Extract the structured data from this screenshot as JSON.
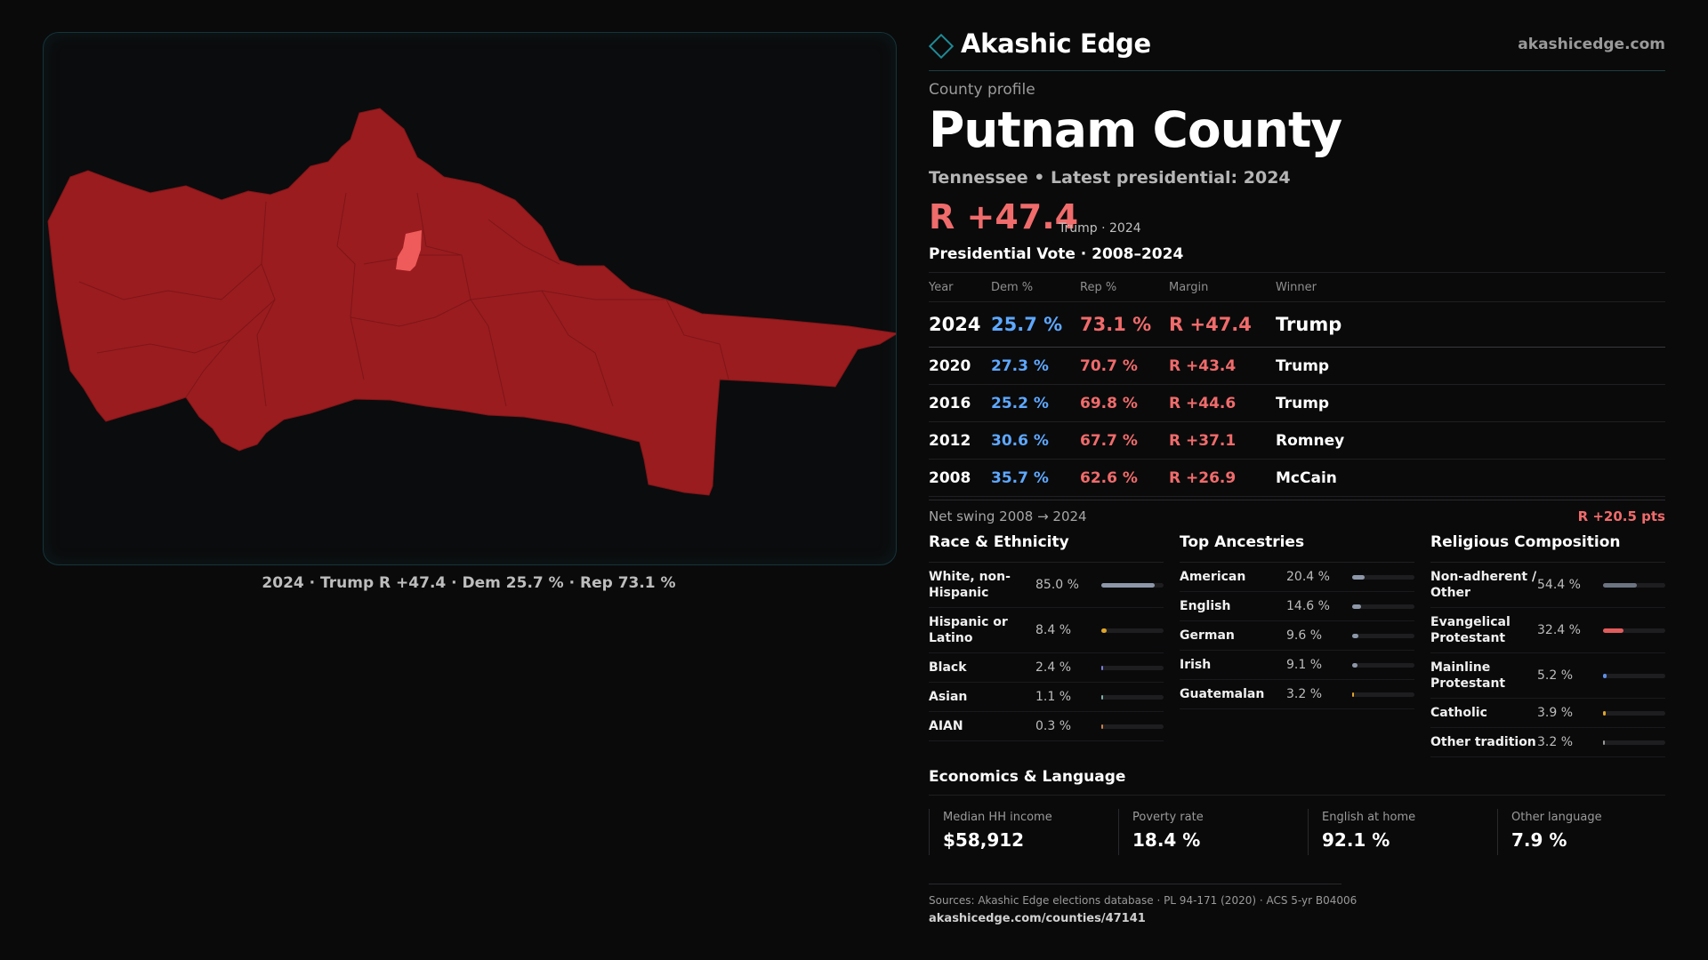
{
  "brand": {
    "name": "Akashic Edge",
    "url": "akashicedge.com",
    "icon": "diamond-outline-icon",
    "accent": "#1f8a95"
  },
  "profile": {
    "eyebrow": "County profile",
    "county": "Putnam County",
    "subtitle": "Tennessee • Latest presidential: 2024",
    "headline_margin": "R +47.4",
    "headline_note": "Trump · 2024"
  },
  "map": {
    "caption": "2024 · Trump R +47.4 · Dem 25.7 % · Rep 73.1 %",
    "fill_color": "#9a1c1f",
    "highlight_color": "#ef5b5b"
  },
  "vote": {
    "title": "Presidential Vote · 2008–2024",
    "headers": [
      "Year",
      "Dem %",
      "Rep %",
      "Margin",
      "Winner"
    ],
    "rows": [
      {
        "year": "2024",
        "dem": "25.7 %",
        "rep": "73.1 %",
        "margin": "R +47.4",
        "winner": "Trump"
      },
      {
        "year": "2020",
        "dem": "27.3 %",
        "rep": "70.7 %",
        "margin": "R +43.4",
        "winner": "Trump"
      },
      {
        "year": "2016",
        "dem": "25.2 %",
        "rep": "69.8 %",
        "margin": "R +44.6",
        "winner": "Trump"
      },
      {
        "year": "2012",
        "dem": "30.6 %",
        "rep": "67.7 %",
        "margin": "R +37.1",
        "winner": "Romney"
      },
      {
        "year": "2008",
        "dem": "35.7 %",
        "rep": "62.6 %",
        "margin": "R +26.9",
        "winner": "McCain"
      }
    ],
    "swing_label": "Net swing 2008 → 2024",
    "swing_value": "R +20.5 pts"
  },
  "race": {
    "title": "Race & Ethnicity",
    "items": [
      {
        "label": "White, non-Hispanic",
        "value": "85.0 %",
        "pct": 85.0,
        "color": "#8d97a8"
      },
      {
        "label": "Hispanic or Latino",
        "value": "8.4 %",
        "pct": 8.4,
        "color": "#e0a528"
      },
      {
        "label": "Black",
        "value": "2.4 %",
        "pct": 2.4,
        "color": "#7b7fd8"
      },
      {
        "label": "Asian",
        "value": "1.1 %",
        "pct": 1.1,
        "color": "#7fb0a8"
      },
      {
        "label": "AIAN",
        "value": "0.3 %",
        "pct": 0.3,
        "color": "#c9844a"
      }
    ]
  },
  "ancestry": {
    "title": "Top Ancestries",
    "items": [
      {
        "label": "American",
        "value": "20.4 %",
        "pct": 20.4,
        "color": "#8d97a8"
      },
      {
        "label": "English",
        "value": "14.6 %",
        "pct": 14.6,
        "color": "#8d97a8"
      },
      {
        "label": "German",
        "value": "9.6 %",
        "pct": 9.6,
        "color": "#8d97a8"
      },
      {
        "label": "Irish",
        "value": "9.1 %",
        "pct": 9.1,
        "color": "#8d97a8"
      },
      {
        "label": "Guatemalan",
        "value": "3.2 %",
        "pct": 3.2,
        "color": "#e0a528"
      }
    ]
  },
  "religion": {
    "title": "Religious Composition",
    "items": [
      {
        "label": "Non-adherent / Other",
        "value": "54.4 %",
        "pct": 54.4,
        "color": "#6c7482"
      },
      {
        "label": "Evangelical Protestant",
        "value": "32.4 %",
        "pct": 32.4,
        "color": "#e25c5c"
      },
      {
        "label": "Mainline Protestant",
        "value": "5.2 %",
        "pct": 5.2,
        "color": "#5e8fe6"
      },
      {
        "label": "Catholic",
        "value": "3.9 %",
        "pct": 3.9,
        "color": "#e0a528"
      },
      {
        "label": "Other tradition",
        "value": "3.2 %",
        "pct": 3.2,
        "color": "#9a9a9a"
      }
    ]
  },
  "economics": {
    "title": "Economics & Language",
    "cards": [
      {
        "label": "Median HH income",
        "value": "$58,912"
      },
      {
        "label": "Poverty rate",
        "value": "18.4 %"
      },
      {
        "label": "English at home",
        "value": "92.1 %"
      },
      {
        "label": "Other language",
        "value": "7.9 %"
      }
    ]
  },
  "footer": {
    "sources": "Sources: Akashic Edge elections database · PL 94-171 (2020) · ACS 5-yr B04006",
    "url": "akashicedge.com/counties/47141"
  }
}
